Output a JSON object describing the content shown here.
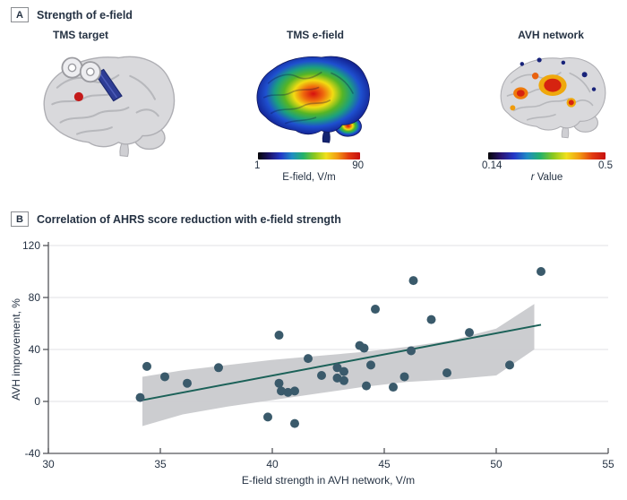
{
  "figure": {
    "panel_a": {
      "label": "A",
      "title": "Strength of e-field",
      "items": [
        {
          "label": "TMS target"
        },
        {
          "label": "TMS e-field"
        },
        {
          "label": "AVH network"
        }
      ],
      "efield_colorbar": {
        "min": "1",
        "max": "90",
        "caption": "E-field, V/m",
        "gradient": [
          "#060608",
          "#1c1468",
          "#2338c8",
          "#1f8cc4",
          "#24b26a",
          "#8cc81e",
          "#f0e01c",
          "#f29a12",
          "#e23a10",
          "#c61010"
        ]
      },
      "rvalue_colorbar": {
        "min": "0.14",
        "max": "0.5",
        "caption_prefix": "r",
        "caption_suffix": " Value",
        "gradient": [
          "#060608",
          "#2a1472",
          "#2338c8",
          "#1f8cc4",
          "#24b26a",
          "#8cc81e",
          "#f0e01c",
          "#f29a12",
          "#e23a10",
          "#c61010"
        ]
      }
    },
    "panel_b": {
      "label": "B",
      "title": "Correlation of AHRS score reduction with e-field strength"
    }
  },
  "chart_data": {
    "type": "scatter",
    "title": "Correlation of AHRS score reduction with e-field strength",
    "xlabel": "E-field strength in AVH network, V/m",
    "ylabel": "AVH improvement, %",
    "xlim": [
      30,
      55
    ],
    "ylim": [
      -40,
      120
    ],
    "xticks": [
      30,
      35,
      40,
      45,
      50,
      55
    ],
    "yticks": [
      -40,
      0,
      40,
      80,
      120
    ],
    "grid": "horizontal-only",
    "legend": "none",
    "points": [
      [
        34.1,
        3
      ],
      [
        34.4,
        27
      ],
      [
        35.2,
        19
      ],
      [
        36.2,
        14
      ],
      [
        37.6,
        26
      ],
      [
        39.8,
        -12
      ],
      [
        40.3,
        51
      ],
      [
        40.3,
        14
      ],
      [
        40.4,
        8
      ],
      [
        40.7,
        7
      ],
      [
        41,
        8
      ],
      [
        41,
        -17
      ],
      [
        41.6,
        33
      ],
      [
        42.2,
        20
      ],
      [
        42.9,
        26
      ],
      [
        42.9,
        18
      ],
      [
        43.2,
        23
      ],
      [
        43.2,
        16
      ],
      [
        43.9,
        43
      ],
      [
        44.1,
        41
      ],
      [
        44.2,
        12
      ],
      [
        44.4,
        28
      ],
      [
        44.6,
        71
      ],
      [
        45.4,
        11
      ],
      [
        45.9,
        19
      ],
      [
        46.2,
        39
      ],
      [
        46.3,
        93
      ],
      [
        47.1,
        63
      ],
      [
        47.8,
        22
      ],
      [
        48.8,
        53
      ],
      [
        50.6,
        28
      ],
      [
        52,
        100
      ]
    ],
    "regression_line": {
      "x": [
        34.2,
        52
      ],
      "y": [
        1,
        59
      ]
    },
    "confidence_band": {
      "x": [
        34.2,
        36,
        38,
        40,
        42,
        44,
        46,
        48,
        50,
        51.7
      ],
      "upper": [
        19,
        24,
        28,
        32,
        35,
        38,
        42,
        47,
        56,
        75
      ],
      "lower": [
        -19,
        -10,
        -4,
        1,
        6,
        11,
        15,
        17,
        20,
        40
      ]
    },
    "colors": {
      "point": "#3a5a6b",
      "line": "#1b6158",
      "band": "#c9cacd",
      "grid": "#e8e8ea",
      "axis": "#55565a",
      "text": "#253243"
    }
  }
}
